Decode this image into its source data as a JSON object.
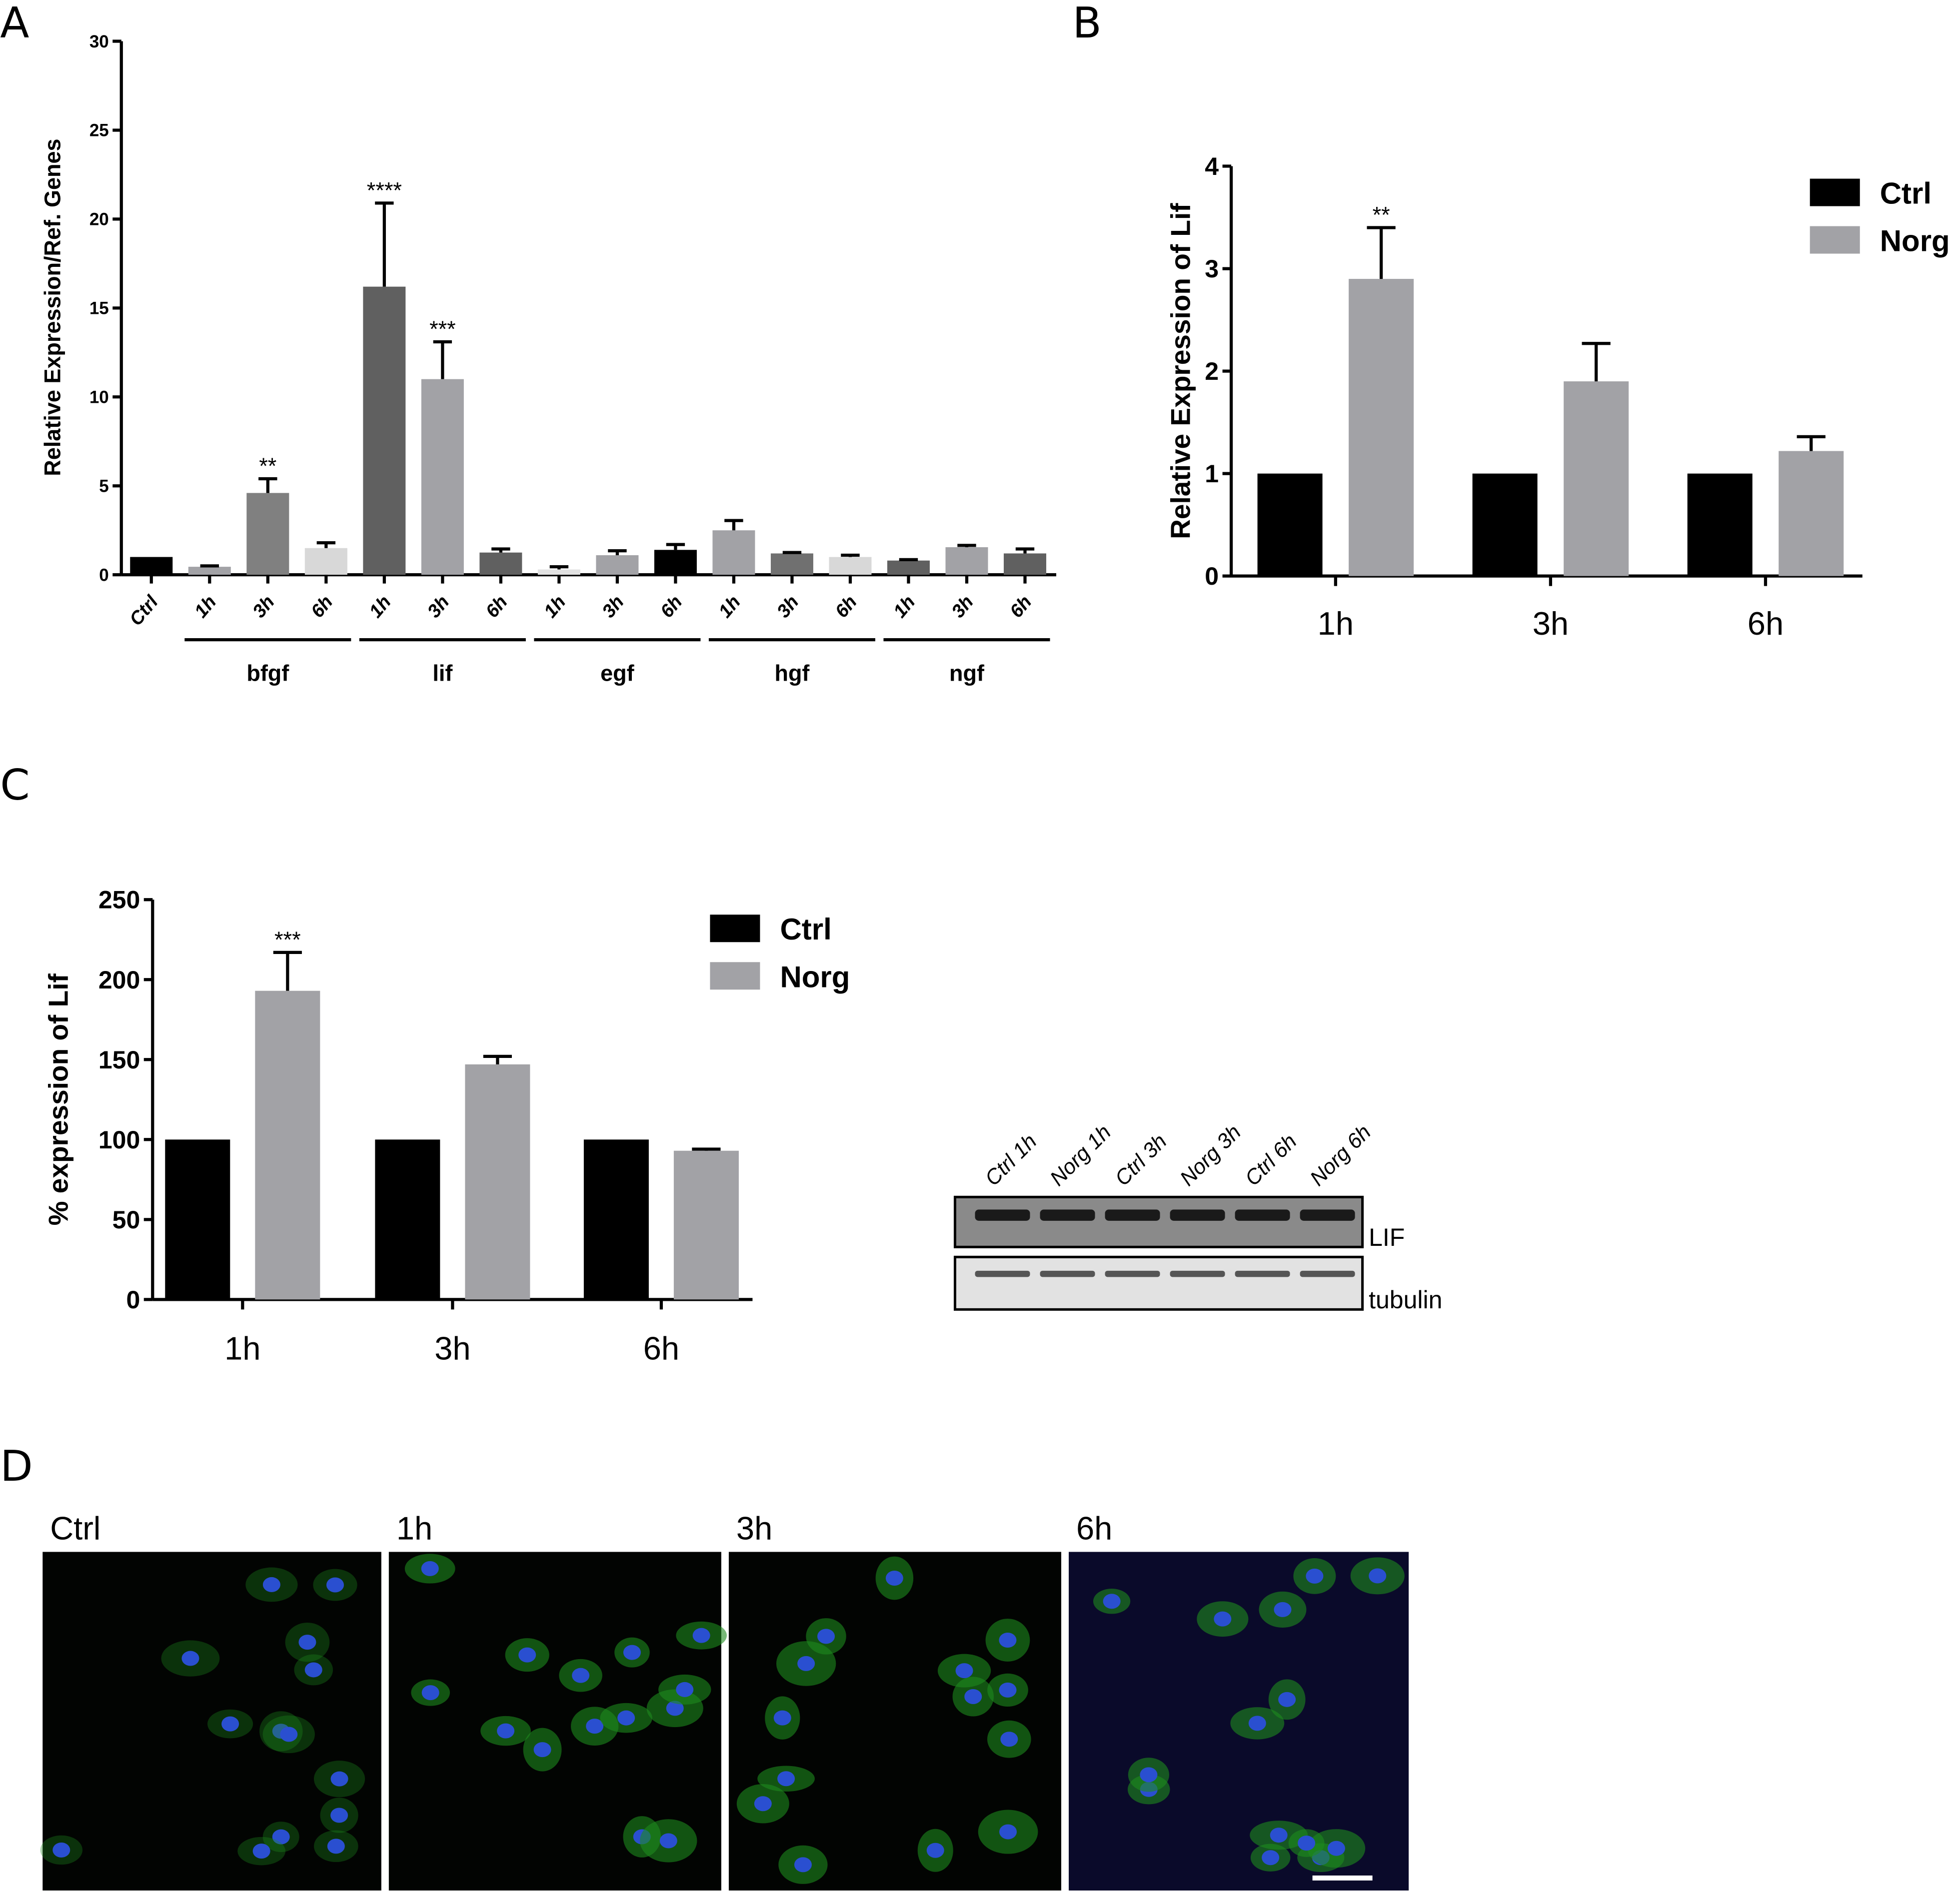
{
  "panels": {
    "a": "A",
    "b": "B",
    "c": "C",
    "d": "D"
  },
  "chart_data": [
    {
      "type": "bar",
      "ylabel": "Relative Expression/Ref. Genes",
      "ylim": [
        0,
        30
      ],
      "yticks": [
        "0",
        "5",
        "10",
        "15",
        "20",
        "25",
        "30"
      ],
      "categories": [
        "Ctrl",
        "1h",
        "3h",
        "6h",
        "1h",
        "3h",
        "6h",
        "1h",
        "3h",
        "6h",
        "1h",
        "3h",
        "6h",
        "1h",
        "3h",
        "6h"
      ],
      "groups": [
        {
          "label": "bfgf",
          "from": 1,
          "to": 3
        },
        {
          "label": "lif",
          "from": 4,
          "to": 6
        },
        {
          "label": "egf",
          "from": 7,
          "to": 9
        },
        {
          "label": "hgf",
          "from": 10,
          "to": 12
        },
        {
          "label": "ngf",
          "from": 13,
          "to": 15
        }
      ],
      "values": [
        1.0,
        0.45,
        4.6,
        1.5,
        16.2,
        11.0,
        1.25,
        0.3,
        1.1,
        1.4,
        2.5,
        1.2,
        1.0,
        0.8,
        1.55,
        1.2
      ],
      "errors": [
        0,
        0.05,
        0.8,
        0.3,
        4.7,
        2.1,
        0.2,
        0.15,
        0.25,
        0.3,
        0.55,
        0.05,
        0.1,
        0.05,
        0.1,
        0.25
      ],
      "colors": [
        "#000000",
        "#a2a2a6",
        "#808080",
        "#d8d8d8",
        "#606060",
        "#a2a2a6",
        "#606060",
        "#e2e2e2",
        "#a2a2a6",
        "#000000",
        "#a2a2a6",
        "#707070",
        "#d8d8d8",
        "#606060",
        "#a2a2a6",
        "#606060"
      ],
      "significance": [
        "",
        "",
        "**",
        "",
        "****",
        "***",
        "",
        "",
        "",
        "",
        "",
        "",
        "",
        "",
        "",
        ""
      ]
    },
    {
      "type": "bar",
      "ylabel": "Relative Expression of Lif",
      "ylim": [
        0,
        4
      ],
      "yticks": [
        "0",
        "1",
        "2",
        "3",
        "4"
      ],
      "categories": [
        "1h",
        "3h",
        "6h"
      ],
      "series": [
        {
          "name": "Ctrl",
          "color": "#000000",
          "values": [
            1,
            1,
            1
          ],
          "errors": [
            0,
            0,
            0
          ]
        },
        {
          "name": "Norg",
          "color": "#a2a2a6",
          "values": [
            2.9,
            1.9,
            1.22
          ],
          "errors": [
            0.5,
            0.37,
            0.14
          ]
        }
      ],
      "significance": {
        "Norg": [
          "**",
          "",
          ""
        ]
      },
      "legend": "top-right"
    },
    {
      "type": "bar",
      "ylabel": "% expression of Lif",
      "ylim": [
        0,
        250
      ],
      "yticks": [
        "0",
        "50",
        "100",
        "150",
        "200",
        "250"
      ],
      "categories": [
        "1h",
        "3h",
        "6h"
      ],
      "series": [
        {
          "name": "Ctrl",
          "color": "#000000",
          "values": [
            100,
            100,
            100
          ],
          "errors": [
            0,
            0,
            0
          ]
        },
        {
          "name": "Norg",
          "color": "#a2a2a6",
          "values": [
            193,
            147,
            93
          ],
          "errors": [
            24,
            5,
            1
          ]
        }
      ],
      "significance": {
        "Norg": [
          "***",
          "",
          ""
        ]
      },
      "legend": "top-right"
    }
  ],
  "blot": {
    "lanes": [
      "Ctrl 1h",
      "Norg 1h",
      "Ctrl 3h",
      "Norg 3h",
      "Ctrl 6h",
      "Norg 6h"
    ],
    "rows": [
      "LIF",
      "tubulin"
    ]
  },
  "micrographs": {
    "labels": [
      "Ctrl",
      "1h",
      "3h",
      "6h"
    ]
  }
}
